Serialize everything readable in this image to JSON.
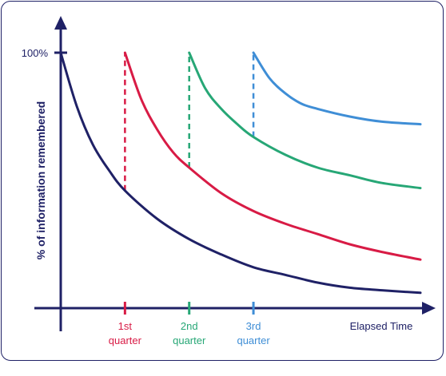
{
  "chart_data": {
    "type": "line",
    "title": "",
    "xlabel": "Elapsed Time",
    "ylabel": "% of information remembered",
    "y_tick_label": "100%",
    "y_tick_value": 100,
    "x_ticks": [
      {
        "line1": "1st",
        "line2": "quarter",
        "x": 1,
        "color": "#d81b45"
      },
      {
        "line1": "2nd",
        "line2": "quarter",
        "x": 2,
        "color": "#27a776"
      },
      {
        "line1": "3rd",
        "line2": "quarter",
        "x": 3,
        "color": "#3f8ed6"
      }
    ],
    "xlim": [
      0,
      5.6
    ],
    "ylim": [
      0,
      100
    ],
    "grid": false,
    "series": [
      {
        "color": "#1f2166",
        "start_x": 0,
        "review_x": null,
        "x": [
          0,
          0.25,
          0.5,
          0.75,
          1,
          1.5,
          2,
          2.5,
          3,
          3.5,
          4,
          4.5,
          5,
          5.6
        ],
        "y": [
          100,
          79,
          64,
          54,
          46,
          35,
          27,
          21,
          16,
          13,
          10,
          8,
          7,
          6
        ]
      },
      {
        "color": "#d81b45",
        "start_x": 1,
        "review_x": 1,
        "x": [
          1,
          1.25,
          1.5,
          1.75,
          2,
          2.5,
          3,
          3.5,
          4,
          4.5,
          5,
          5.6
        ],
        "y": [
          100,
          82,
          70,
          61,
          55,
          45,
          38,
          33,
          29,
          25,
          22,
          19
        ]
      },
      {
        "color": "#27a776",
        "start_x": 2,
        "review_x": 2,
        "x": [
          2,
          2.25,
          2.5,
          2.75,
          3,
          3.5,
          4,
          4.5,
          5,
          5.6
        ],
        "y": [
          100,
          86,
          78,
          72,
          67,
          60,
          55,
          52,
          49,
          47
        ]
      },
      {
        "color": "#3f8ed6",
        "start_x": 3,
        "review_x": 3,
        "x": [
          3,
          3.25,
          3.5,
          3.75,
          4,
          4.5,
          5,
          5.6
        ],
        "y": [
          100,
          90,
          84,
          80,
          78,
          75,
          73,
          72
        ]
      }
    ]
  }
}
